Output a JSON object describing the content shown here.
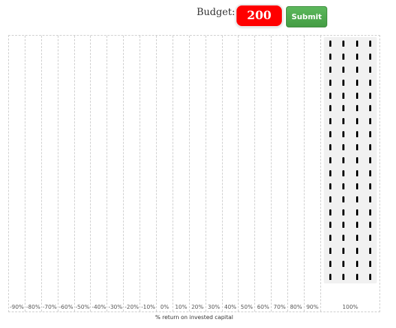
{
  "header": {
    "budget_label": "Budget:",
    "budget_value": "200",
    "submit_label": "Submit",
    "budget_bg": "#ff0000",
    "submit_bg": "#4cae4c"
  },
  "chart": {
    "axis_title": "% return on invested capital",
    "bins": [
      "-90%",
      "-80%",
      "-70%",
      "-60%",
      "-50%",
      "-40%",
      "-30%",
      "-20%",
      "-10%",
      "0%",
      "10%",
      "20%",
      "30%",
      "40%",
      "50%",
      "60%",
      "70%",
      "80%",
      "90%",
      "100%"
    ],
    "allocations": [
      0,
      0,
      0,
      0,
      0,
      0,
      0,
      0,
      0,
      0,
      0,
      0,
      0,
      0,
      0,
      0,
      0,
      0,
      0,
      76
    ],
    "token_icon": "token-icon"
  }
}
